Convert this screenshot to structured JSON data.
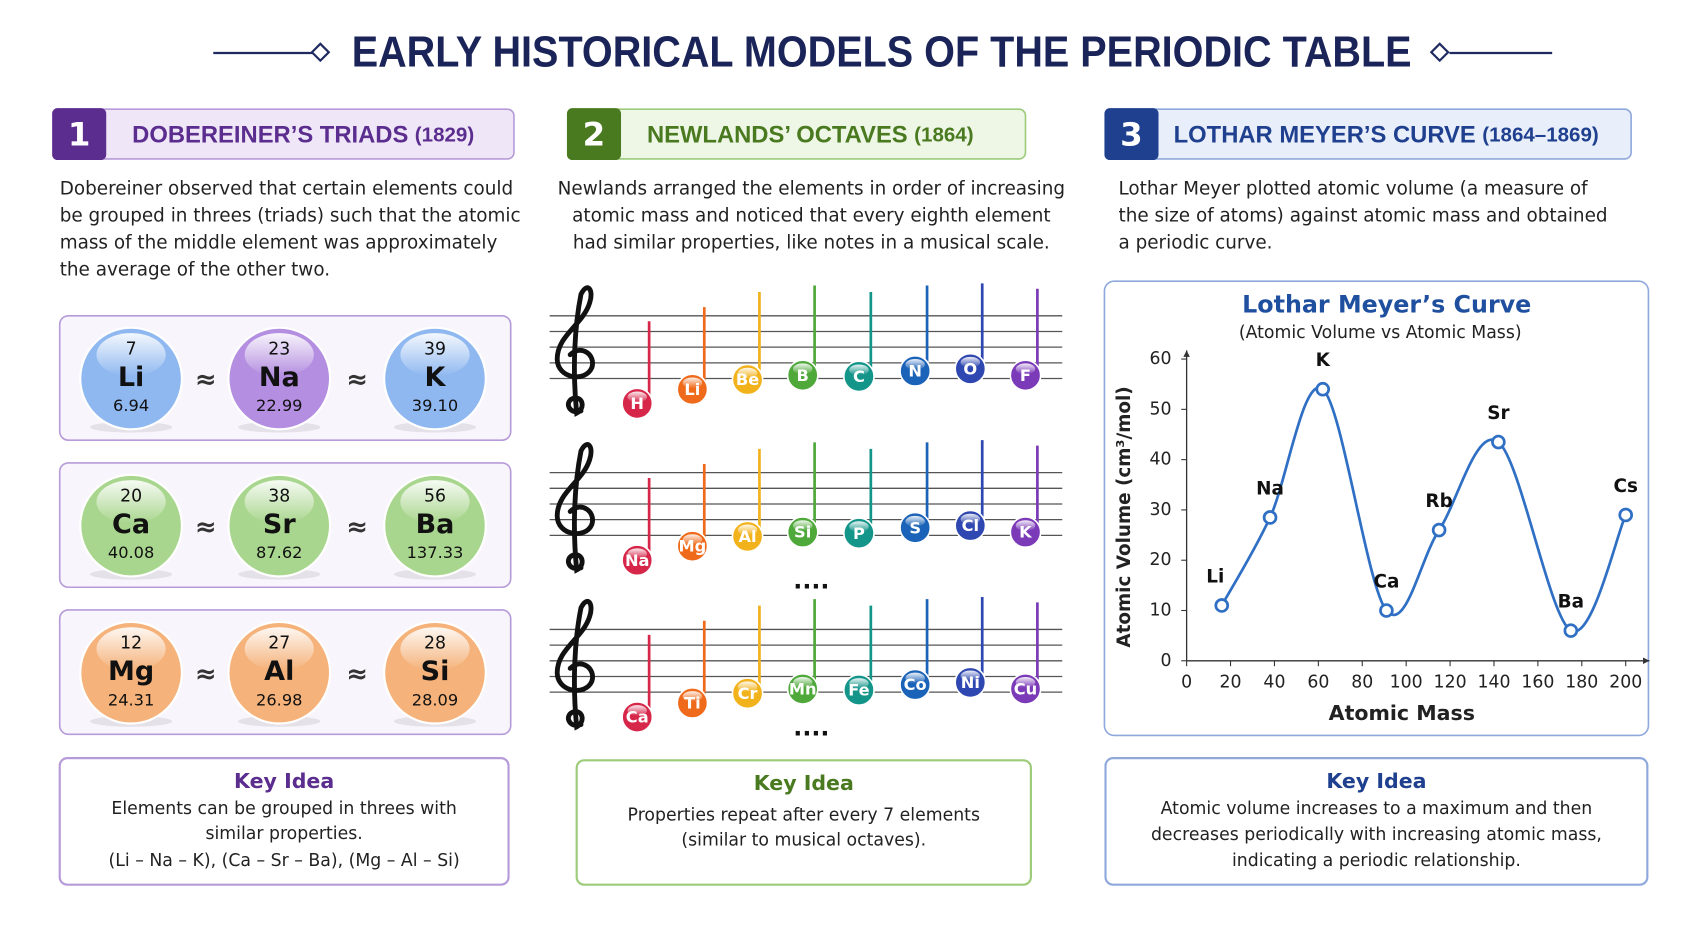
{
  "header": {
    "title": "EARLY HISTORICAL MODELS OF THE PERIODIC TABLE"
  },
  "sections": [
    {
      "number": "1",
      "title": "DOBEREINER’S TRIADS",
      "year": "(1829)",
      "description": [
        "Dobereiner observed that certain elements could",
        "be grouped in threes (triads) such that the atomic",
        "mass of the middle element was approximately",
        "the average of the other two."
      ],
      "approx": "≈",
      "triads": [
        [
          {
            "number": 7,
            "symbol": "Li",
            "mass": "6.94",
            "color": "#8fb8f0"
          },
          {
            "number": 23,
            "symbol": "Na",
            "mass": "22.99",
            "color": "#b48ee0"
          },
          {
            "number": 39,
            "symbol": "K",
            "mass": "39.10",
            "color": "#8fb8f0"
          }
        ],
        [
          {
            "number": 20,
            "symbol": "Ca",
            "mass": "40.08",
            "color": "#a9d68e"
          },
          {
            "number": 38,
            "symbol": "Sr",
            "mass": "87.62",
            "color": "#a9d68e"
          },
          {
            "number": 56,
            "symbol": "Ba",
            "mass": "137.33",
            "color": "#a9d68e"
          }
        ],
        [
          {
            "number": 12,
            "symbol": "Mg",
            "mass": "24.31",
            "color": "#f5b27a"
          },
          {
            "number": 27,
            "symbol": "Al",
            "mass": "26.98",
            "color": "#f5b27a"
          },
          {
            "number": 28,
            "symbol": "Si",
            "mass": "28.09",
            "color": "#f5b27a"
          }
        ]
      ],
      "key_idea": {
        "title": "Key Idea",
        "lines": [
          "Elements can be grouped in threes with",
          "similar properties.",
          "(Li – Na – K), (Ca – Sr – Ba), (Mg – Al – Si)"
        ]
      }
    },
    {
      "number": "2",
      "title": "NEWLANDS’ OCTAVES",
      "year": "(1864)",
      "description": [
        "Newlands arranged the elements in order of increasing",
        "atomic mass and noticed that every eighth element",
        "had similar properties, like notes in a musical scale."
      ],
      "note_colors": [
        "#d6274a",
        "#ef6a1a",
        "#f2b21c",
        "#4fa83a",
        "#13958a",
        "#1b63b8",
        "#2f47b0",
        "#7b3ab8"
      ],
      "staves": [
        [
          "H",
          "Li",
          "Be",
          "B",
          "C",
          "N",
          "O",
          "F"
        ],
        [
          "Na",
          "Mg",
          "Al",
          "Si",
          "P",
          "S",
          "Cl",
          "K"
        ],
        [
          "Ca",
          "Ti",
          "Cr",
          "Mn",
          "Fe",
          "Co",
          "Ni",
          "Cu"
        ]
      ],
      "ellipsis": "....",
      "key_idea": {
        "title": "Key Idea",
        "lines": [
          "Properties repeat after every 7 elements",
          "(similar to musical octaves)."
        ]
      }
    },
    {
      "number": "3",
      "title": "LOTHAR MEYER’S CURVE",
      "year": "(1864–1869)",
      "description": [
        "Lothar Meyer plotted atomic volume (a measure of",
        "the size of atoms) against atomic mass and obtained",
        "a periodic curve."
      ],
      "key_idea": {
        "title": "Key Idea",
        "lines": [
          "Atomic volume increases to a maximum and then",
          "decreases periodically with increasing atomic mass,",
          "indicating a periodic relationship."
        ]
      }
    }
  ],
  "chart_data": {
    "type": "line",
    "title": "Lothar Meyer’s Curve",
    "subtitle": "(Atomic Volume vs Atomic Mass)",
    "x_label": "Atomic Mass",
    "y_label": "Atomic Volume (cm³/mol)",
    "labels": [
      "Li",
      "Na",
      "K",
      "Ca",
      "Rb",
      "Sr",
      "Ba",
      "Cs"
    ],
    "x": [
      16,
      38,
      62,
      91,
      115,
      142,
      175,
      200
    ],
    "values": [
      11,
      28.5,
      54,
      10,
      26,
      43.5,
      6,
      29
    ],
    "color": "#2f6fc4",
    "xlim": [
      0,
      200
    ],
    "ylim": [
      0,
      60
    ],
    "xticks": [
      0,
      20,
      40,
      60,
      80,
      100,
      120,
      140,
      160,
      180,
      200
    ],
    "yticks": [
      0,
      10,
      20,
      30,
      40,
      50,
      60
    ],
    "grid": false
  }
}
